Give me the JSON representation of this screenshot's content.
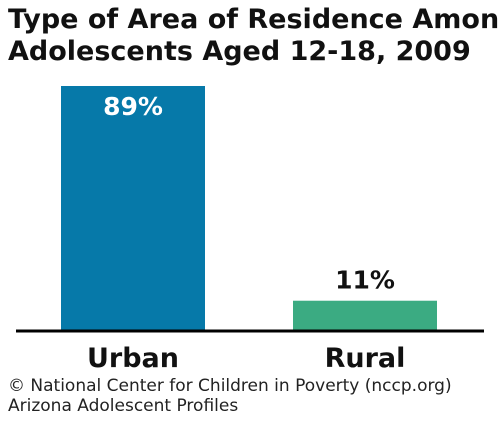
{
  "chart_data": {
    "type": "bar",
    "title_lines": [
      "Type of Area of Residence Among",
      "Adolescents Aged 12-18, 2009"
    ],
    "categories": [
      "Urban",
      "Rural"
    ],
    "values": [
      89,
      11
    ],
    "value_labels": [
      "89%",
      "11%"
    ],
    "colors": [
      "#0679a9",
      "#3bab82"
    ],
    "ylim": [
      0,
      89
    ],
    "xlabel": "",
    "ylabel": "",
    "grid": false
  },
  "footer": {
    "credit": "© National Center for Children in Poverty (nccp.org)",
    "source": "Arizona Adolescent Profiles"
  }
}
